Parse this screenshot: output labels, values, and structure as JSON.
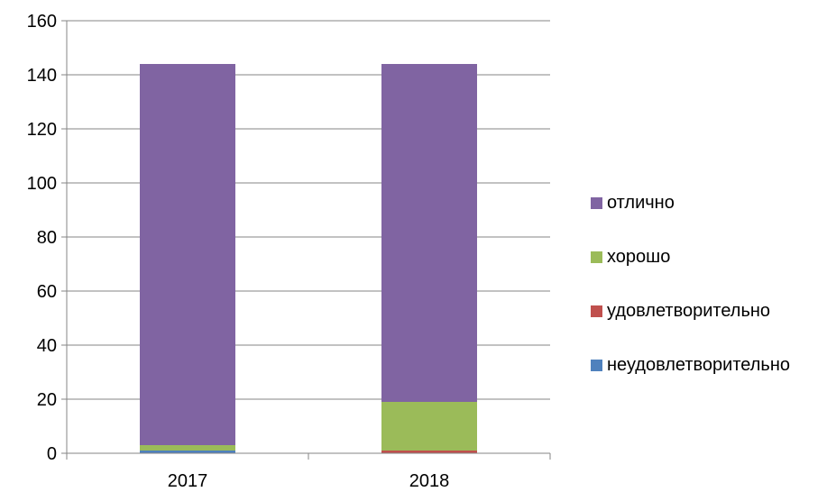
{
  "chart_data": {
    "type": "bar",
    "stacked": true,
    "categories": [
      "2017",
      "2018"
    ],
    "series": [
      {
        "name": "неудовлетворительно",
        "color": "#4F81BD",
        "values": [
          1,
          0
        ]
      },
      {
        "name": "удовлетворительно",
        "color": "#C0504D",
        "values": [
          0,
          1
        ]
      },
      {
        "name": "хорошо",
        "color": "#9BBB59",
        "values": [
          2,
          18
        ]
      },
      {
        "name": "отлично",
        "color": "#8064A2",
        "values": [
          141,
          125
        ]
      }
    ],
    "ylim": [
      0,
      160
    ],
    "yticks": [
      "0",
      "20",
      "40",
      "60",
      "80",
      "100",
      "120",
      "140",
      "160"
    ],
    "grid": true,
    "legend_position": "right",
    "legend_order": [
      "отлично",
      "хорошо",
      "удовлетворительно",
      "неудовлетворительно"
    ]
  }
}
